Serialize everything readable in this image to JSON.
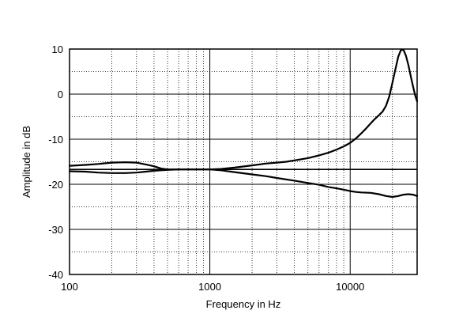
{
  "chart_data": {
    "type": "line",
    "title": "",
    "xlabel": "Frequency in Hz",
    "ylabel": "Amplitude in dB",
    "x_scale": "log",
    "xlim": [
      100,
      30000
    ],
    "ylim": [
      -40,
      10
    ],
    "x_ticks": [
      100,
      1000,
      10000
    ],
    "x_tick_labels": [
      "100",
      "1000",
      "10000"
    ],
    "y_ticks": [
      -40,
      -30,
      -20,
      -10,
      0,
      10
    ],
    "y_tick_labels": [
      "-40",
      "-30",
      "-20",
      "-10",
      "0",
      "10"
    ],
    "grid": true,
    "grid_style": "dotted minor, solid major",
    "reference_line": -16.7,
    "line_color": "#000000",
    "series": [
      {
        "x": [
          100,
          130,
          160,
          200,
          250,
          300,
          350,
          400,
          450,
          500,
          600,
          700,
          800,
          1000,
          1200,
          1500,
          2000,
          2500,
          3000,
          3500,
          4000,
          5000,
          6000,
          7000,
          8000,
          9000,
          10000,
          11000,
          12000,
          13000,
          14000,
          15000,
          16000,
          17000,
          18000,
          19000,
          20000,
          21000,
          22000,
          23000,
          24000,
          25000,
          26000,
          27000,
          28000,
          29000,
          30000
        ],
        "y": [
          -15.9,
          -15.7,
          -15.5,
          -15.2,
          -15.1,
          -15.2,
          -15.6,
          -16.0,
          -16.5,
          -16.7,
          -16.7,
          -16.7,
          -16.7,
          -16.7,
          -16.6,
          -16.3,
          -15.8,
          -15.4,
          -15.2,
          -15.0,
          -14.7,
          -14.2,
          -13.6,
          -13.0,
          -12.3,
          -11.6,
          -10.8,
          -9.8,
          -8.7,
          -7.6,
          -6.5,
          -5.5,
          -4.7,
          -3.9,
          -2.6,
          -0.5,
          2.5,
          5.5,
          8.3,
          9.8,
          9.8,
          8.5,
          6.4,
          4.0,
          1.8,
          -0.2,
          -1.6
        ]
      },
      {
        "x": [
          100,
          130,
          160,
          200,
          250,
          300,
          350,
          400,
          450,
          500,
          600,
          700,
          800,
          1000,
          1200,
          1500,
          2000,
          2500,
          3000,
          4000,
          5000,
          6000,
          7000,
          8000,
          9000,
          10000,
          11000,
          12000,
          14000,
          16000,
          18000,
          20000,
          22000,
          24000,
          26000,
          28000,
          30000
        ],
        "y": [
          -17.1,
          -17.2,
          -17.4,
          -17.5,
          -17.5,
          -17.4,
          -17.2,
          -17.0,
          -16.9,
          -16.8,
          -16.7,
          -16.7,
          -16.7,
          -16.7,
          -16.9,
          -17.3,
          -17.8,
          -18.2,
          -18.6,
          -19.2,
          -19.7,
          -20.1,
          -20.6,
          -20.9,
          -21.2,
          -21.5,
          -21.7,
          -21.8,
          -21.9,
          -22.2,
          -22.6,
          -22.8,
          -22.6,
          -22.3,
          -22.2,
          -22.3,
          -22.6
        ]
      }
    ]
  }
}
